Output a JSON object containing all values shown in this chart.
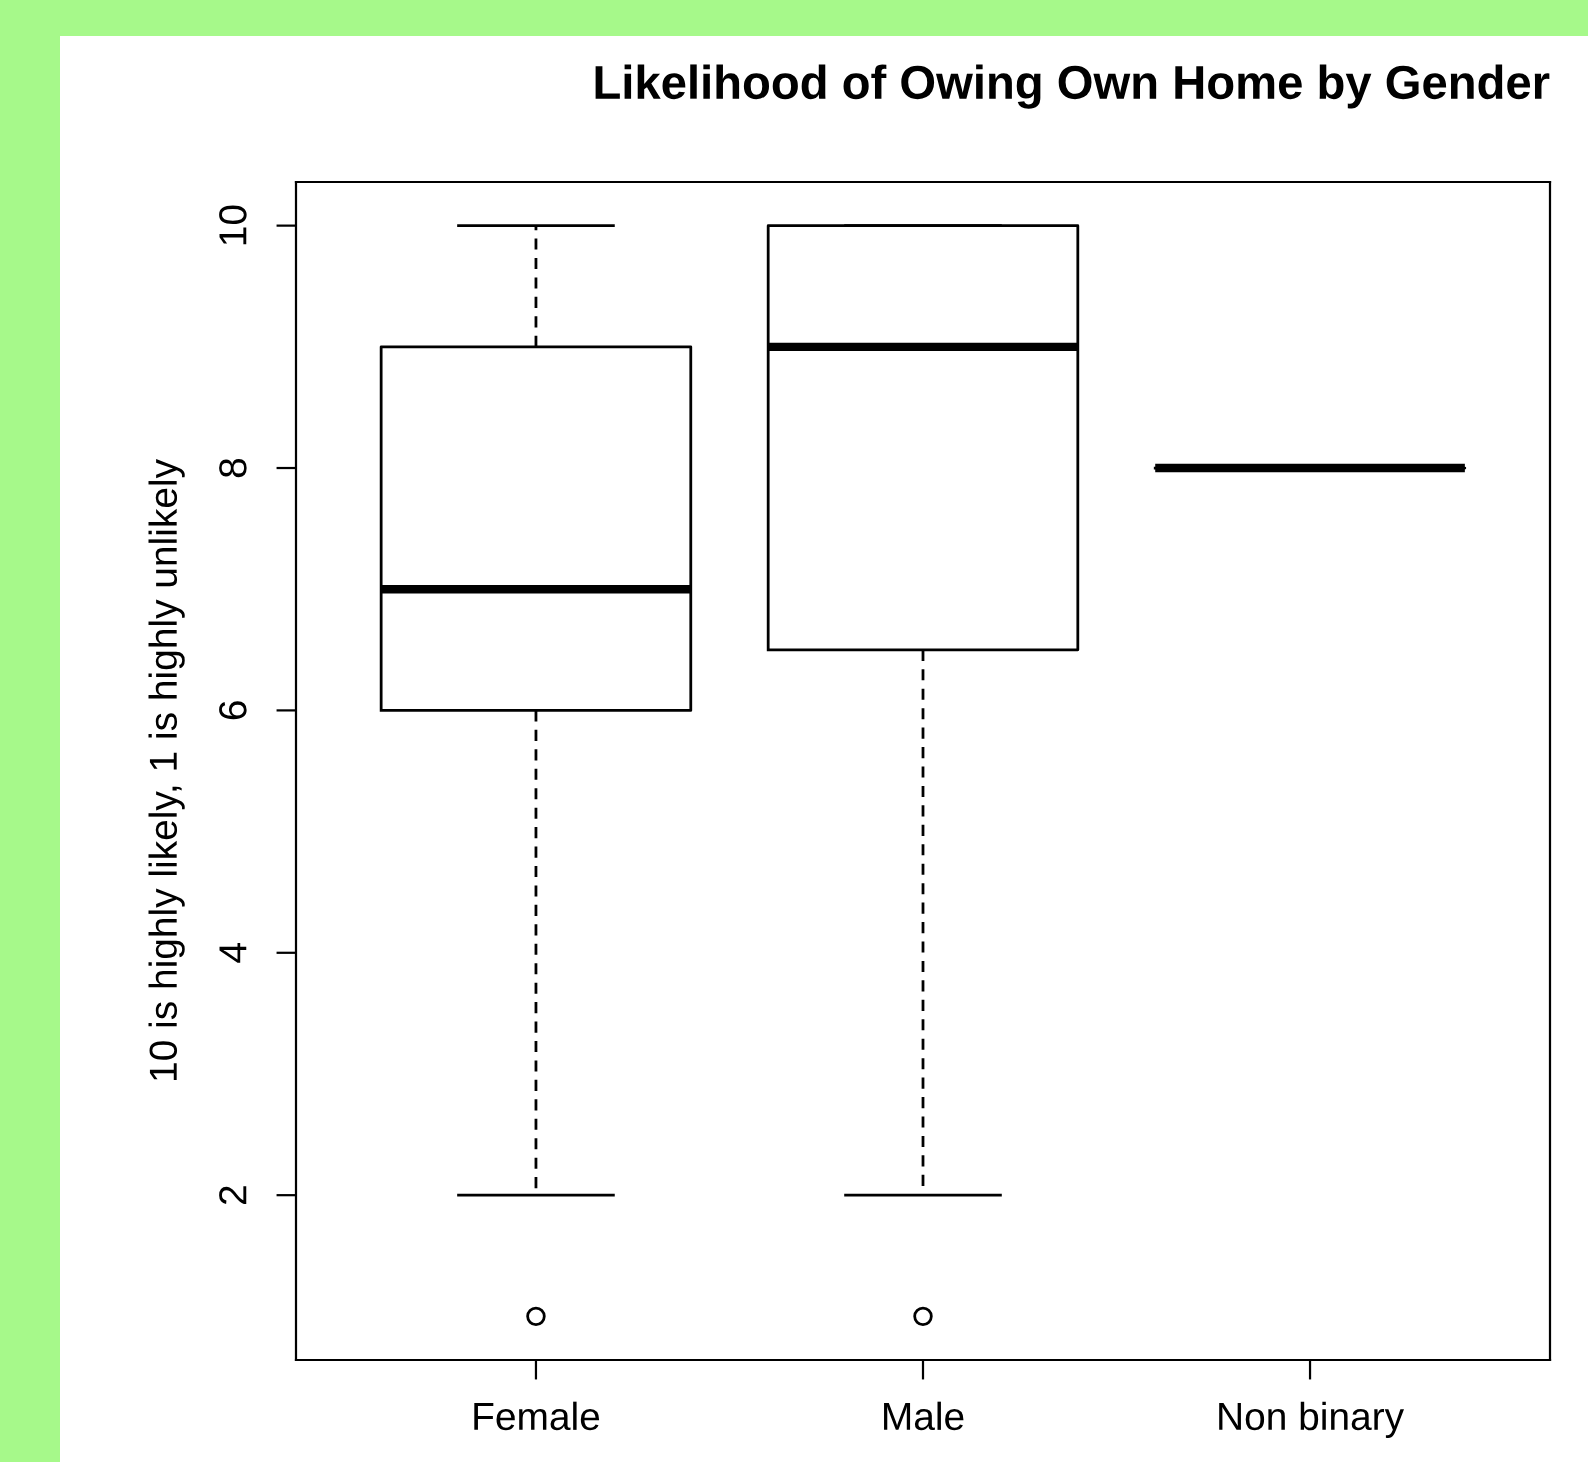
{
  "chart_data": {
    "type": "box",
    "title": "Likelihood of Owing Own Home by Gender",
    "ylabel": "10 is highly likely, 1 is highly unlikely",
    "categories": [
      "Female",
      "Male",
      "Non binary"
    ],
    "boxes": [
      {
        "low": 2,
        "q1": 6,
        "median": 7,
        "q3": 9,
        "high": 10,
        "outliers": [
          1
        ]
      },
      {
        "low": 2,
        "q1": 6.5,
        "median": 9,
        "q3": 10,
        "high": 10,
        "outliers": [
          1
        ]
      },
      {
        "low": 8,
        "q1": 8,
        "median": 8,
        "q3": 8,
        "high": 8
      }
    ],
    "ylim": [
      0.64,
      10.36
    ],
    "yticks": [
      2,
      4,
      6,
      8,
      10
    ],
    "grid": false,
    "legend": false
  }
}
